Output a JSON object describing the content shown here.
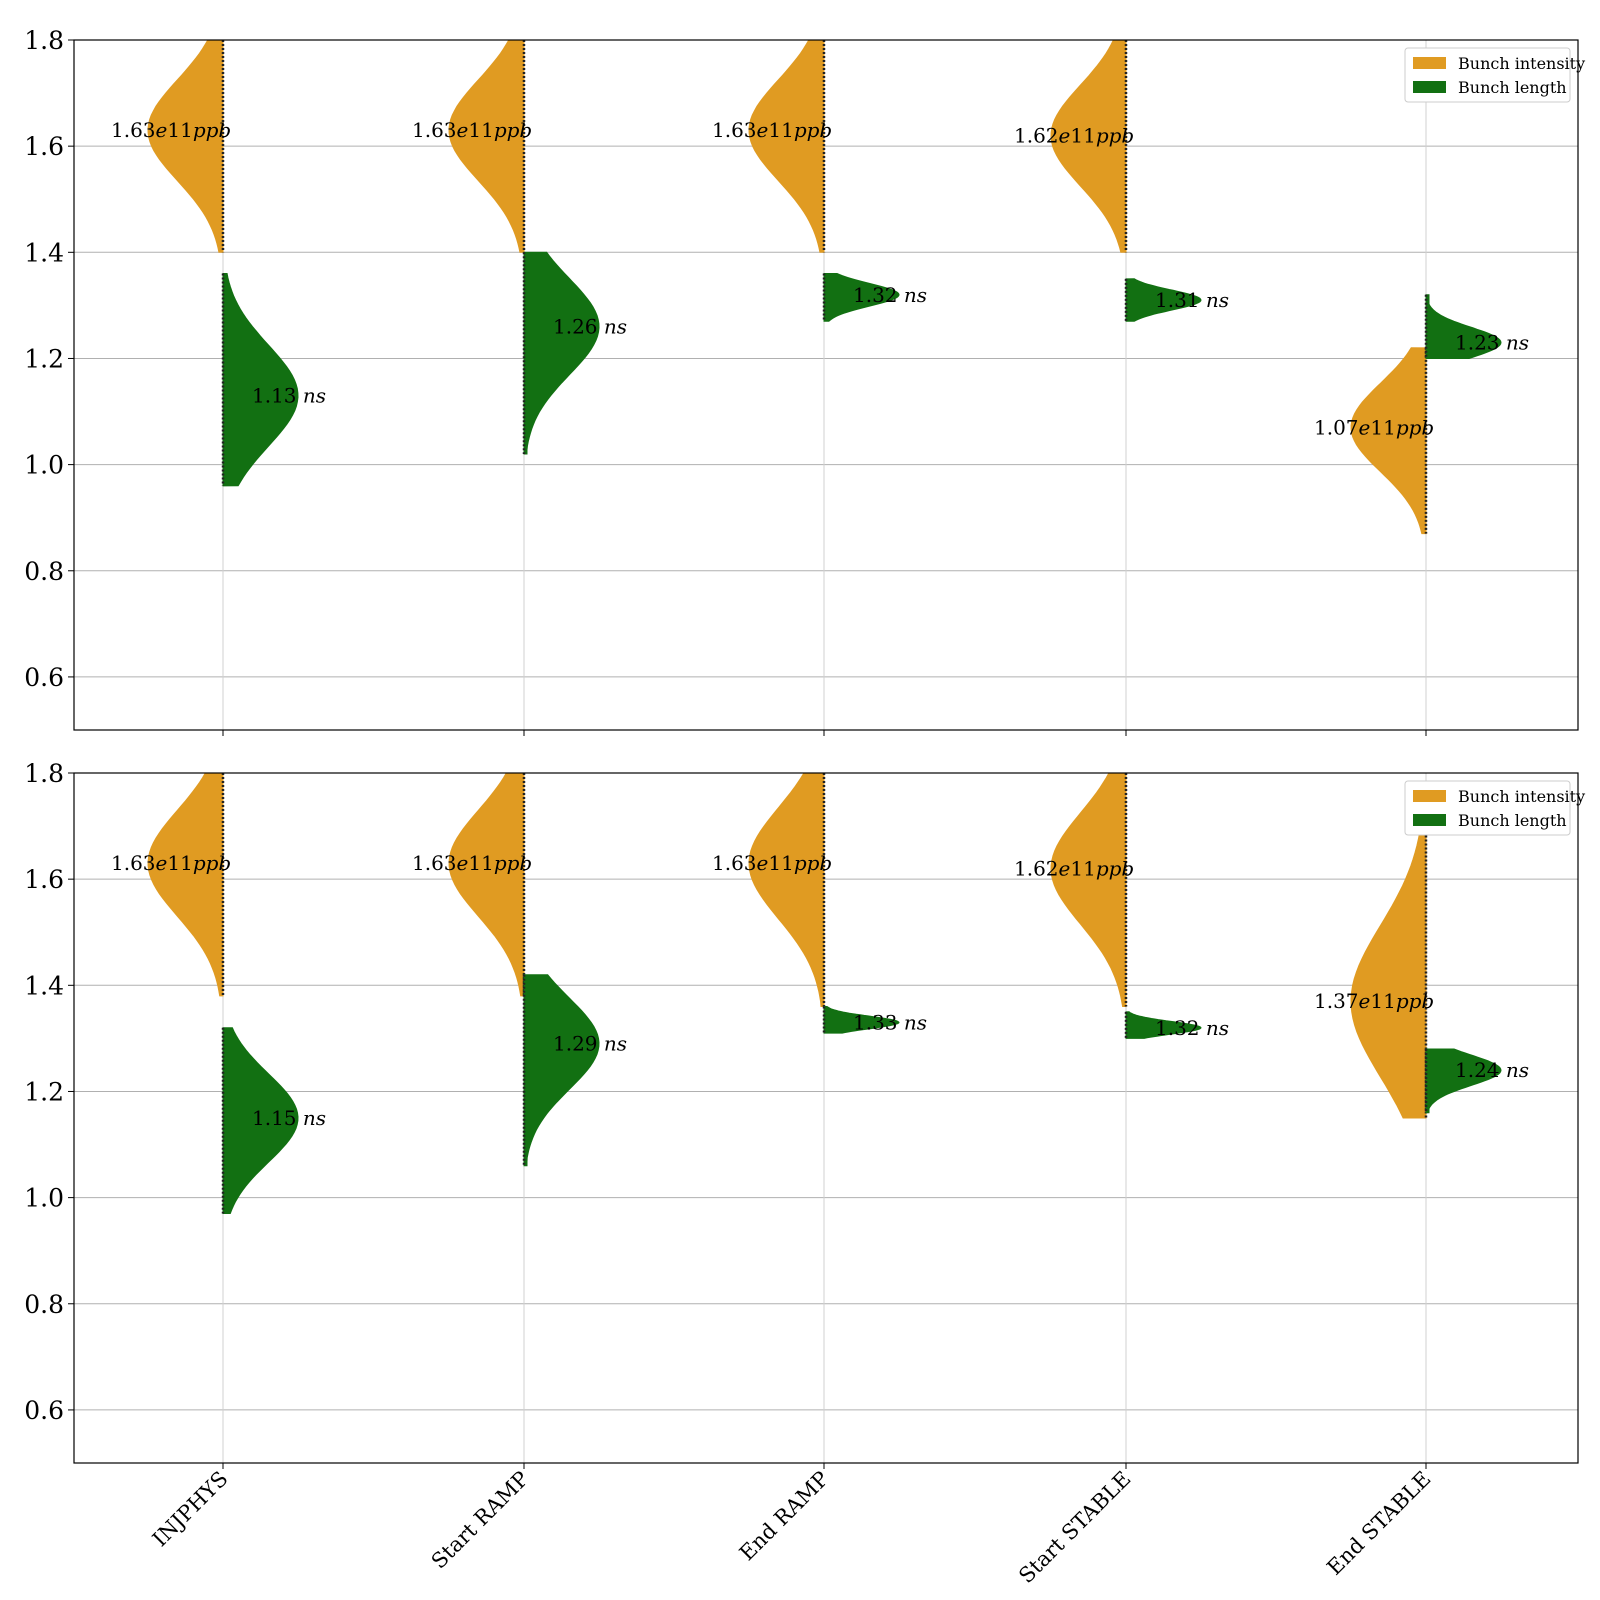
{
  "chart_data": [
    {
      "type": "split-violin",
      "ylim": [
        0.5,
        1.8
      ],
      "yticks": [
        "0.6",
        "0.8",
        "1.0",
        "1.2",
        "1.4",
        "1.6",
        "1.8"
      ],
      "grid": "horizontal",
      "legend_location": "top-right",
      "categories": [
        "INJPHYS",
        "Start RAMP",
        "End RAMP",
        "Start STABLE",
        "End STABLE"
      ],
      "series": [
        {
          "name": "Bunch intensity",
          "color": "#e09b22",
          "side": "left",
          "medians": [
            1.63,
            1.63,
            1.63,
            1.62,
            1.07
          ],
          "ranges": [
            [
              1.4,
              1.8
            ],
            [
              1.4,
              1.8
            ],
            [
              1.4,
              1.8
            ],
            [
              1.4,
              1.8
            ],
            [
              0.87,
              1.22
            ]
          ],
          "labels": [
            {
              "value": "1.63",
              "exp": "e11",
              "unit": "ppb"
            },
            {
              "value": "1.63",
              "exp": "e11",
              "unit": "ppb"
            },
            {
              "value": "1.63",
              "exp": "e11",
              "unit": "ppb"
            },
            {
              "value": "1.62",
              "exp": "e11",
              "unit": "ppb"
            },
            {
              "value": "1.07",
              "exp": "e11",
              "unit": "ppb"
            }
          ]
        },
        {
          "name": "Bunch length",
          "color": "#127012",
          "side": "right",
          "medians": [
            1.13,
            1.26,
            1.32,
            1.31,
            1.23
          ],
          "ranges": [
            [
              0.96,
              1.36
            ],
            [
              1.02,
              1.4
            ],
            [
              1.27,
              1.36
            ],
            [
              1.27,
              1.35
            ],
            [
              1.2,
              1.32
            ]
          ],
          "labels": [
            {
              "value": "1.13",
              "unit": "ns"
            },
            {
              "value": "1.26",
              "unit": "ns"
            },
            {
              "value": "1.32",
              "unit": "ns"
            },
            {
              "value": "1.31",
              "unit": "ns"
            },
            {
              "value": "1.23",
              "unit": "ns"
            }
          ]
        }
      ]
    },
    {
      "type": "split-violin",
      "ylim": [
        0.5,
        1.8
      ],
      "yticks": [
        "0.6",
        "0.8",
        "1.0",
        "1.2",
        "1.4",
        "1.6",
        "1.8"
      ],
      "grid": "horizontal",
      "legend_location": "top-right",
      "categories": [
        "INJPHYS",
        "Start RAMP",
        "End RAMP",
        "Start STABLE",
        "End STABLE"
      ],
      "series": [
        {
          "name": "Bunch intensity",
          "color": "#e09b22",
          "side": "left",
          "medians": [
            1.63,
            1.63,
            1.63,
            1.62,
            1.37
          ],
          "ranges": [
            [
              1.38,
              1.8
            ],
            [
              1.38,
              1.8
            ],
            [
              1.36,
              1.8
            ],
            [
              1.36,
              1.8
            ],
            [
              1.15,
              1.75
            ]
          ],
          "labels": [
            {
              "value": "1.63",
              "exp": "e11",
              "unit": "ppb"
            },
            {
              "value": "1.63",
              "exp": "e11",
              "unit": "ppb"
            },
            {
              "value": "1.63",
              "exp": "e11",
              "unit": "ppb"
            },
            {
              "value": "1.62",
              "exp": "e11",
              "unit": "ppb"
            },
            {
              "value": "1.37",
              "exp": "e11",
              "unit": "ppb"
            }
          ]
        },
        {
          "name": "Bunch length",
          "color": "#127012",
          "side": "right",
          "medians": [
            1.15,
            1.29,
            1.33,
            1.32,
            1.24
          ],
          "ranges": [
            [
              0.97,
              1.32
            ],
            [
              1.06,
              1.42
            ],
            [
              1.31,
              1.36
            ],
            [
              1.3,
              1.35
            ],
            [
              1.16,
              1.28
            ]
          ],
          "labels": [
            {
              "value": "1.15",
              "unit": "ns"
            },
            {
              "value": "1.29",
              "unit": "ns"
            },
            {
              "value": "1.33",
              "unit": "ns"
            },
            {
              "value": "1.32",
              "unit": "ns"
            },
            {
              "value": "1.24",
              "unit": "ns"
            }
          ]
        }
      ]
    }
  ]
}
